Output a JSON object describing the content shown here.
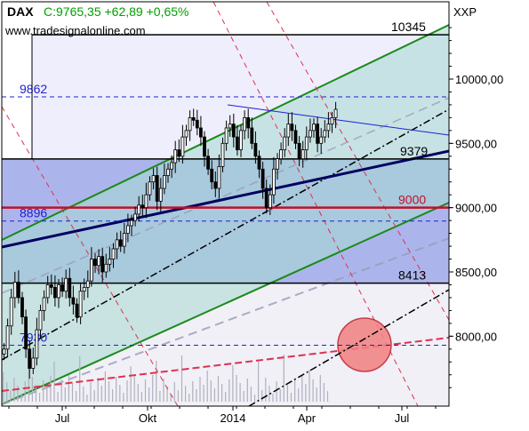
{
  "header": {
    "symbol": "DAX",
    "quote": "C:9765,35 +62,89 +0,65%",
    "source": "www.tradesignalonline.com",
    "axis_unit": "XXP",
    "symbol_color": "#000000",
    "quote_color": "#00a000"
  },
  "chart_data": {
    "type": "candlestick",
    "title": "DAX",
    "xlabel": "",
    "ylabel": "",
    "ylim": [
      7460,
      10500
    ],
    "x_tick_labels": [
      "Jul",
      "Okt",
      "2014",
      "Apr",
      "Jul"
    ],
    "y_tick_labels": [
      "8500,00",
      "9000,00",
      "9500,00",
      "10000,00"
    ],
    "y_tick_values": [
      8500,
      9000,
      9500,
      10000
    ],
    "y_tick_8000": {
      "label": "8000,00",
      "value": 8000
    },
    "last_close": 9765.35,
    "change": 62.89,
    "change_pct": 0.65,
    "price_path": [
      7900,
      8080,
      8300,
      8420,
      8300,
      8150,
      7900,
      7750,
      7830,
      8050,
      8200,
      8300,
      8400,
      8380,
      8300,
      8400,
      8350,
      8450,
      8300,
      8250,
      8150,
      8350,
      8380,
      8430,
      8600,
      8550,
      8620,
      8500,
      8560,
      8600,
      8680,
      8750,
      8700,
      8800,
      8860,
      8900,
      8950,
      9020,
      9000,
      9100,
      9200,
      9250,
      9050,
      9150,
      9250,
      9300,
      9350,
      9450,
      9400,
      9550,
      9600,
      9700,
      9680,
      9620,
      9550,
      9400,
      9300,
      9200,
      9150,
      9320,
      9500,
      9620,
      9650,
      9550,
      9450,
      9600,
      9700,
      9620,
      9500,
      9400,
      9300,
      9150,
      9000,
      9100,
      9300,
      9380,
      9450,
      9550,
      9650,
      9600,
      9500,
      9380,
      9450,
      9550,
      9600,
      9650,
      9500,
      9550,
      9600,
      9650,
      9700,
      9765
    ],
    "horizontal_levels": [
      {
        "label": "10345",
        "value": 10345,
        "style": "solid",
        "color": "#000000"
      },
      {
        "label": "9862",
        "value": 9862,
        "style": "dashed",
        "color": "#2020d0"
      },
      {
        "label": "9379",
        "value": 9379,
        "style": "solid",
        "color": "#000000"
      },
      {
        "label": "9000",
        "value": 9000,
        "style": "solid",
        "color": "#c0102a"
      },
      {
        "label": "8896",
        "value": 8896,
        "style": "dashed",
        "color": "#2020d0"
      },
      {
        "label": "8413",
        "value": 8413,
        "style": "solid",
        "color": "#000000"
      },
      {
        "label": "7930",
        "value": 7930,
        "style": "dashed",
        "color": "#2020d0"
      }
    ],
    "colors": {
      "channel": "#1a8a1a",
      "trendline": "#000060",
      "resistance": "#2020d0",
      "red_dashed": "#e04060",
      "projection": "#000000",
      "highlight_circle": "#f08080",
      "channel_fill": "#a8d8d0",
      "zone_fill": "#9ea8e8",
      "volume": "#b0b0c0"
    },
    "grid": false,
    "legend": "none"
  }
}
